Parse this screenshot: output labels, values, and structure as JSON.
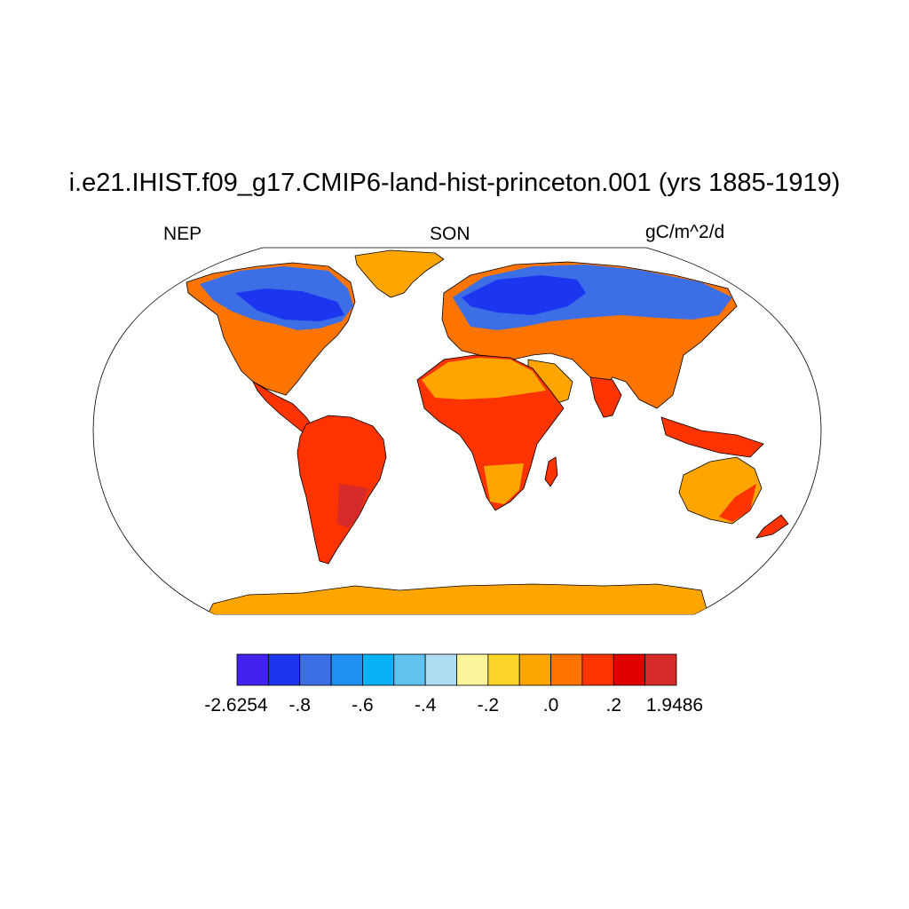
{
  "title": "i.e21.IHIST.f09_g17.CMIP6-land-hist-princeton.001 (yrs 1885-1919)",
  "subtitle_left": "NEP",
  "subtitle_center": "SON",
  "subtitle_right": "gC/m^2/d",
  "map": {
    "projection": "robinson",
    "ocean_color": "#ffffff",
    "coastline_color": "#000000",
    "regions": [
      {
        "name": "greenland",
        "color": "#ffa500"
      },
      {
        "name": "antarctica",
        "color": "#ffa500"
      },
      {
        "name": "sahara",
        "color": "#ffa500"
      },
      {
        "name": "arabia",
        "color": "#ffa500"
      }
    ]
  },
  "colorbar": {
    "colors": [
      "#4422ee",
      "#1b36ee",
      "#3c6ee6",
      "#1f8ff0",
      "#0ab1f7",
      "#61c2ef",
      "#aedcf2",
      "#fdf59b",
      "#fdd42b",
      "#fda500",
      "#fd7400",
      "#fd3300",
      "#e10000",
      "#d72b2b"
    ],
    "labels": [
      "-2.6254",
      "-.8",
      "-.6",
      "-.4",
      "-.2",
      ".0",
      ".2",
      "1.9486"
    ],
    "label_boundaries": [
      0,
      2,
      4,
      6,
      8,
      10,
      12,
      14
    ]
  }
}
